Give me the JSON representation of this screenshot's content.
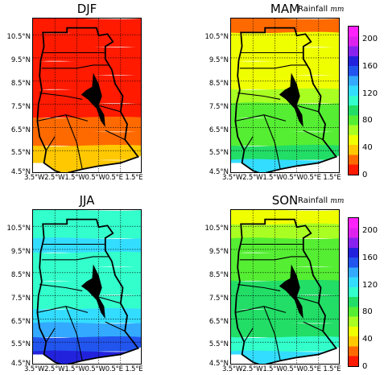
{
  "panels": [
    {
      "id": "djf",
      "title": "DJF",
      "field": {
        "type": "rainfall_bands",
        "levels_mm": [
          10,
          10,
          10,
          10,
          10,
          10,
          12,
          18,
          25,
          32,
          42
        ]
      }
    },
    {
      "id": "mam",
      "title": "MAM",
      "field": {
        "type": "rainfall_bands",
        "levels_mm": [
          25,
          58,
          58,
          58,
          58,
          70,
          85,
          85,
          82,
          95,
          120
        ]
      }
    },
    {
      "id": "jja",
      "title": "JJA",
      "field": {
        "type": "rainfall_bands",
        "levels_mm": [
          115,
          115,
          118,
          115,
          110,
          110,
          112,
          125,
          140,
          160,
          175
        ]
      }
    },
    {
      "id": "son",
      "title": "SON",
      "field": {
        "type": "rainfall_bands",
        "levels_mm": [
          52,
          72,
          78,
          82,
          85,
          88,
          90,
          95,
          100,
          105,
          125
        ]
      }
    }
  ],
  "axes": {
    "y_ticks": [
      "10.5°N",
      "9.5°N",
      "8.5°N",
      "7.5°N",
      "6.5°N",
      "5.5°N",
      "4.5°N"
    ],
    "x_ticks_text": "3.5°W2.5°W1.5°W0.5°W0.5°E 1.5°E",
    "lat_range": [
      4.5,
      11.2
    ],
    "lon_range": [
      -3.5,
      1.5
    ]
  },
  "colorbar": {
    "title": "Rainfall",
    "unit": "mm",
    "ticks": [
      "0",
      "40",
      "80",
      "120",
      "160",
      "200"
    ],
    "range": [
      0,
      220
    ],
    "colors": [
      "#ff1a00",
      "#ff6a00",
      "#ffc800",
      "#f0ff00",
      "#aaff22",
      "#55ee33",
      "#22dd66",
      "#33ffcc",
      "#33ddff",
      "#33aaff",
      "#2255ee",
      "#2222dd",
      "#8822ee",
      "#dd22ee",
      "#ff22ff"
    ]
  }
}
